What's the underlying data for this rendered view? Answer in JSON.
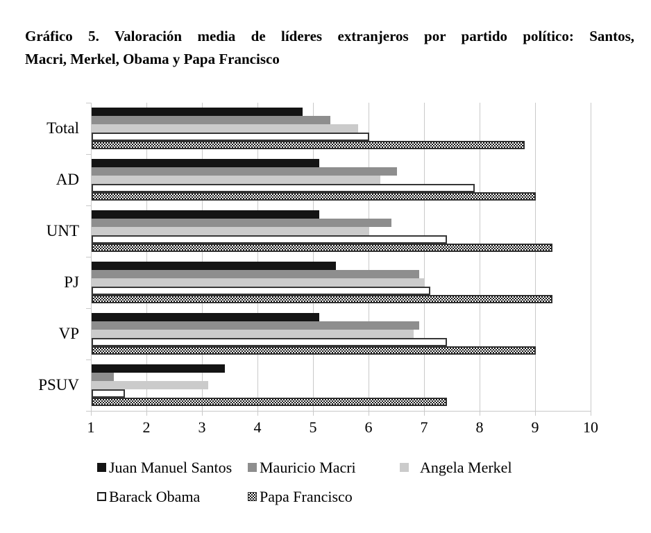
{
  "title": "Gráfico 5. Valoración media de líderes extranjeros por partido político: Santos, Macri, Merkel, Obama y Papa Francisco",
  "title_lines": {
    "line1": "Gráfico 5. Valoración media de líderes extranjeros por partido político: Santos,",
    "line2": "Macri, Merkel, Obama y Papa Francisco"
  },
  "chart_data": {
    "type": "bar",
    "orientation": "horizontal",
    "title": "Gráfico 5. Valoración media de líderes extranjeros por partido político: Santos, Macri, Merkel, Obama y Papa Francisco",
    "categories": [
      "Total",
      "AD",
      "UNT",
      "PJ",
      "VP",
      "PSUV"
    ],
    "series": [
      {
        "key": "santos",
        "name": "Juan Manuel Santos",
        "style": "solid",
        "color": "#141414",
        "values": [
          4.8,
          5.1,
          5.1,
          5.4,
          5.1,
          3.4
        ]
      },
      {
        "key": "macri",
        "name": "Mauricio Macri",
        "style": "solid",
        "color": "#8e8e8e",
        "values": [
          5.3,
          6.5,
          6.4,
          6.9,
          6.9,
          1.4
        ]
      },
      {
        "key": "merkel",
        "name": "Angela Merkel",
        "style": "solid",
        "color": "#cbcbcb",
        "values": [
          5.8,
          6.2,
          6.0,
          7.0,
          6.8,
          3.1
        ]
      },
      {
        "key": "obama",
        "name": "Barack Obama",
        "style": "white-outline",
        "color": "#ffffff",
        "values": [
          6.0,
          7.9,
          7.4,
          7.1,
          7.4,
          1.6
        ]
      },
      {
        "key": "papa",
        "name": "Papa Francisco",
        "style": "checker-pattern",
        "color": "checkerboard",
        "values": [
          8.8,
          9.0,
          9.3,
          9.3,
          9.0,
          7.4
        ]
      }
    ],
    "x_axis": {
      "min": 1,
      "max": 10,
      "tick_labels": [
        "1",
        "2",
        "3",
        "4",
        "5",
        "6",
        "7",
        "8",
        "9",
        "10"
      ]
    },
    "y_axis_label": "",
    "x_axis_label": "",
    "grid": true,
    "gridlines": "vertical",
    "legend_position": "bottom",
    "legend_rows": [
      [
        "Juan Manuel Santos",
        "Mauricio Macri",
        "Angela Merkel"
      ],
      [
        "Barack Obama",
        "Papa Francisco"
      ]
    ]
  },
  "colors": {
    "background": "#ffffff",
    "text": "#000000",
    "grid": "#c9c9c9",
    "bar_black": "#141414",
    "bar_gray": "#8e8e8e",
    "bar_lightgray": "#cbcbcb",
    "bar_outline": "#363636"
  }
}
